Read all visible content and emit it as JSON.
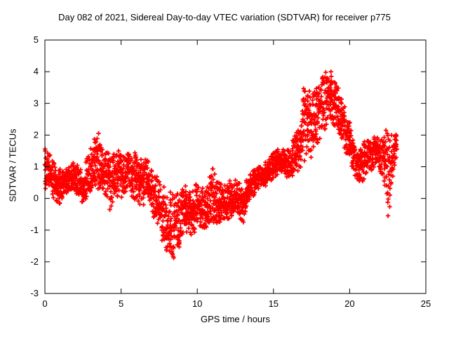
{
  "title": "Day 082 of 2021, Sidereal Day-to-day VTEC variation (SDTVAR) for receiver p775",
  "chart_data": {
    "type": "scatter",
    "marker": "plus",
    "color": "#ff0000",
    "axis_color": "#000000",
    "background": "#ffffff",
    "grid": false,
    "legend": "none",
    "title": "Day 082 of 2021, Sidereal Day-to-day VTEC variation (SDTVAR) for receiver p775",
    "xlabel": "GPS time / hours",
    "ylabel": "SDTVAR / TECUs",
    "xlim": [
      0,
      25
    ],
    "ylim": [
      -3,
      5
    ],
    "xticks": [
      0,
      5,
      10,
      15,
      20,
      25
    ],
    "yticks": [
      -3,
      -2,
      -1,
      0,
      1,
      2,
      3,
      4,
      5
    ],
    "x_range_of_data": [
      0,
      23.1
    ],
    "envelope_format": "[gps_hour, sdtvar_min_TECU, sdtvar_max_TECU]",
    "envelope": [
      [
        0.0,
        0.3,
        1.7
      ],
      [
        0.25,
        0.2,
        1.5
      ],
      [
        0.5,
        0.0,
        1.2
      ],
      [
        0.75,
        -0.1,
        1.0
      ],
      [
        1.0,
        -0.2,
        1.0
      ],
      [
        1.25,
        0.0,
        0.9
      ],
      [
        1.5,
        0.2,
        1.0
      ],
      [
        1.75,
        0.3,
        1.1
      ],
      [
        2.0,
        0.2,
        1.2
      ],
      [
        2.25,
        0.0,
        1.0
      ],
      [
        2.5,
        -0.2,
        0.9
      ],
      [
        2.75,
        0.0,
        1.3
      ],
      [
        3.0,
        0.2,
        1.6
      ],
      [
        3.25,
        0.4,
        1.9
      ],
      [
        3.5,
        0.3,
        2.15
      ],
      [
        3.75,
        0.2,
        1.6
      ],
      [
        4.0,
        -0.3,
        1.5
      ],
      [
        4.25,
        -0.4,
        1.4
      ],
      [
        4.5,
        -0.2,
        1.5
      ],
      [
        4.75,
        0.0,
        1.6
      ],
      [
        5.0,
        0.0,
        1.4
      ],
      [
        5.25,
        0.1,
        1.3
      ],
      [
        5.5,
        0.2,
        1.5
      ],
      [
        5.75,
        0.0,
        1.6
      ],
      [
        6.0,
        -0.1,
        1.4
      ],
      [
        6.25,
        -0.2,
        1.2
      ],
      [
        6.5,
        -0.3,
        1.3
      ],
      [
        6.75,
        -0.2,
        1.2
      ],
      [
        7.0,
        -0.4,
        1.0
      ],
      [
        7.25,
        -0.8,
        0.8
      ],
      [
        7.5,
        -1.1,
        0.6
      ],
      [
        7.75,
        -1.4,
        0.4
      ],
      [
        8.0,
        -1.7,
        0.3
      ],
      [
        8.25,
        -1.95,
        0.2
      ],
      [
        8.5,
        -2.05,
        0.1
      ],
      [
        8.75,
        -1.6,
        0.2
      ],
      [
        9.0,
        -1.2,
        0.3
      ],
      [
        9.25,
        -1.0,
        0.4
      ],
      [
        9.5,
        -1.4,
        0.3
      ],
      [
        9.75,
        -1.1,
        0.4
      ],
      [
        10.0,
        -0.9,
        0.5
      ],
      [
        10.25,
        -0.9,
        0.4
      ],
      [
        10.5,
        -1.0,
        0.3
      ],
      [
        10.75,
        -0.9,
        0.5
      ],
      [
        11.0,
        -0.8,
        1.05
      ],
      [
        11.25,
        -0.9,
        0.7
      ],
      [
        11.5,
        -0.9,
        0.5
      ],
      [
        11.75,
        -0.8,
        0.4
      ],
      [
        12.0,
        -0.7,
        0.5
      ],
      [
        12.25,
        -0.6,
        0.6
      ],
      [
        12.5,
        -0.5,
        0.6
      ],
      [
        12.75,
        -0.7,
        0.5
      ],
      [
        13.0,
        -0.8,
        0.4
      ],
      [
        13.25,
        -0.3,
        0.6
      ],
      [
        13.5,
        0.0,
        0.8
      ],
      [
        13.75,
        0.1,
        0.9
      ],
      [
        14.0,
        0.2,
        1.0
      ],
      [
        14.25,
        0.3,
        1.1
      ],
      [
        14.5,
        0.4,
        1.2
      ],
      [
        14.75,
        0.5,
        1.3
      ],
      [
        15.0,
        0.6,
        1.5
      ],
      [
        15.25,
        0.7,
        1.6
      ],
      [
        15.5,
        0.8,
        1.6
      ],
      [
        15.75,
        0.7,
        1.5
      ],
      [
        16.0,
        0.6,
        1.6
      ],
      [
        16.25,
        0.7,
        1.8
      ],
      [
        16.5,
        0.8,
        2.1
      ],
      [
        16.75,
        0.9,
        2.2
      ],
      [
        17.0,
        1.0,
        3.9
      ],
      [
        17.25,
        1.2,
        3.5
      ],
      [
        17.5,
        1.3,
        3.3
      ],
      [
        17.75,
        1.5,
        3.6
      ],
      [
        18.0,
        1.7,
        3.85
      ],
      [
        18.25,
        2.0,
        4.0
      ],
      [
        18.5,
        2.2,
        4.1
      ],
      [
        18.75,
        2.4,
        4.0
      ],
      [
        19.0,
        2.2,
        3.8
      ],
      [
        19.25,
        2.0,
        3.5
      ],
      [
        19.5,
        1.7,
        3.2
      ],
      [
        19.75,
        1.4,
        2.8
      ],
      [
        20.0,
        1.1,
        2.4
      ],
      [
        20.25,
        0.8,
        2.0
      ],
      [
        20.5,
        0.6,
        1.7
      ],
      [
        20.75,
        0.5,
        1.6
      ],
      [
        21.0,
        0.6,
        1.8
      ],
      [
        21.25,
        0.8,
        1.9
      ],
      [
        21.5,
        0.9,
        2.0
      ],
      [
        21.75,
        1.0,
        2.0
      ],
      [
        22.0,
        0.8,
        1.9
      ],
      [
        22.25,
        0.4,
        2.2
      ],
      [
        22.5,
        -0.8,
        2.1
      ],
      [
        22.75,
        0.3,
        2.0
      ],
      [
        23.0,
        1.2,
        2.2
      ],
      [
        23.1,
        1.4,
        2.2
      ]
    ],
    "notable_features": {
      "max_value_TECU": 4.1,
      "max_value_time_h": 18.5,
      "min_value_TECU": -2.05,
      "min_value_time_h": 8.5,
      "isolated_spike": [
        3.5,
        2.15
      ]
    }
  }
}
